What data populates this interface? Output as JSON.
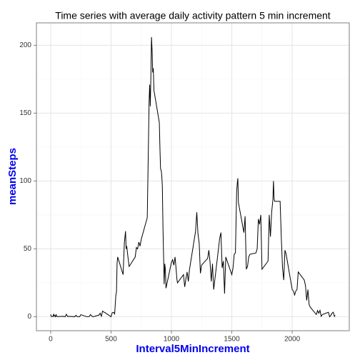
{
  "chart_data": {
    "type": "line",
    "title": "Time series with average daily activity pattern 5 min increment",
    "x_label": "Interval5MinIncrement",
    "y_label": "meanSteps",
    "x": [
      0,
      5,
      10,
      15,
      20,
      25,
      30,
      35,
      40,
      45,
      50,
      55,
      100,
      110,
      120,
      130,
      140,
      150,
      200,
      210,
      220,
      230,
      240,
      250,
      300,
      310,
      320,
      330,
      340,
      350,
      400,
      410,
      420,
      430,
      440,
      450,
      500,
      510,
      520,
      530,
      540,
      545,
      550,
      555,
      600,
      610,
      620,
      625,
      630,
      640,
      650,
      700,
      710,
      720,
      730,
      740,
      750,
      800,
      810,
      815,
      820,
      825,
      830,
      835,
      840,
      845,
      850,
      855,
      900,
      905,
      910,
      915,
      920,
      925,
      930,
      935,
      940,
      945,
      950,
      955,
      1000,
      1010,
      1020,
      1030,
      1040,
      1045,
      1050,
      1100,
      1110,
      1120,
      1130,
      1140,
      1150,
      1200,
      1210,
      1220,
      1230,
      1240,
      1250,
      1300,
      1310,
      1320,
      1330,
      1340,
      1350,
      1400,
      1410,
      1420,
      1430,
      1440,
      1450,
      1500,
      1510,
      1520,
      1530,
      1540,
      1545,
      1550,
      1555,
      1600,
      1610,
      1620,
      1630,
      1640,
      1650,
      1700,
      1710,
      1720,
      1730,
      1740,
      1750,
      1800,
      1810,
      1820,
      1830,
      1840,
      1845,
      1850,
      1855,
      1900,
      1910,
      1920,
      1930,
      1940,
      1950,
      2000,
      2010,
      2020,
      2030,
      2040,
      2050,
      2100,
      2110,
      2120,
      2130,
      2140,
      2150,
      2200,
      2210,
      2220,
      2230,
      2240,
      2250,
      2300,
      2310,
      2320,
      2330,
      2340,
      2350,
      2355
    ],
    "series": [
      {
        "name": "meanSteps",
        "color": "#000000",
        "values": [
          1.7,
          0.3,
          0.1,
          0.2,
          0.1,
          2.1,
          0.5,
          0.9,
          0,
          1.5,
          0.3,
          0.1,
          0.3,
          0.2,
          0,
          1.8,
          0.2,
          0.3,
          0,
          1.1,
          0,
          0,
          0,
          1.5,
          0,
          0,
          0.2,
          1.6,
          0.5,
          0,
          1.2,
          2.6,
          0.3,
          4.1,
          3.5,
          3,
          0,
          3,
          3.3,
          2.1,
          16,
          18,
          39,
          44,
          31,
          54,
          63,
          50,
          52,
          44,
          37,
          44,
          51,
          50,
          55,
          52,
          57,
          73,
          129,
          158,
          171,
          155,
          177,
          206,
          196,
          180,
          183,
          167,
          143,
          124,
          109,
          108,
          104,
          96,
          66,
          45,
          24,
          39,
          35,
          21,
          40,
          42,
          38,
          44,
          34,
          28,
          25,
          31,
          22,
          28,
          33,
          26,
          35,
          63,
          77,
          61,
          54,
          32,
          38,
          43,
          49,
          40,
          26,
          39,
          20,
          58,
          62,
          36,
          41,
          17,
          44,
          31,
          36,
          46,
          47,
          92,
          98,
          102,
          84,
          62,
          74,
          35,
          37,
          44,
          46,
          47,
          50,
          72,
          68,
          75,
          35,
          41,
          75,
          59,
          77,
          86,
          100,
          87,
          85,
          85,
          58,
          36,
          27,
          49,
          46,
          20,
          19,
          16,
          19,
          20,
          33,
          27,
          23,
          12,
          20,
          9,
          7,
          1.6,
          4.6,
          2.6,
          4.7,
          0.3,
          1.6,
          3.3,
          0,
          1,
          2.6,
          3.3,
          0.2,
          1.1
        ]
      }
    ],
    "xlim": [
      -117.75,
      2472.75
    ],
    "xticks": [
      0,
      500,
      1000,
      1500,
      2000
    ],
    "ylim": [
      -10.3,
      216.5
    ],
    "yticks": [
      0,
      50,
      100,
      150,
      200
    ],
    "grid": true
  }
}
